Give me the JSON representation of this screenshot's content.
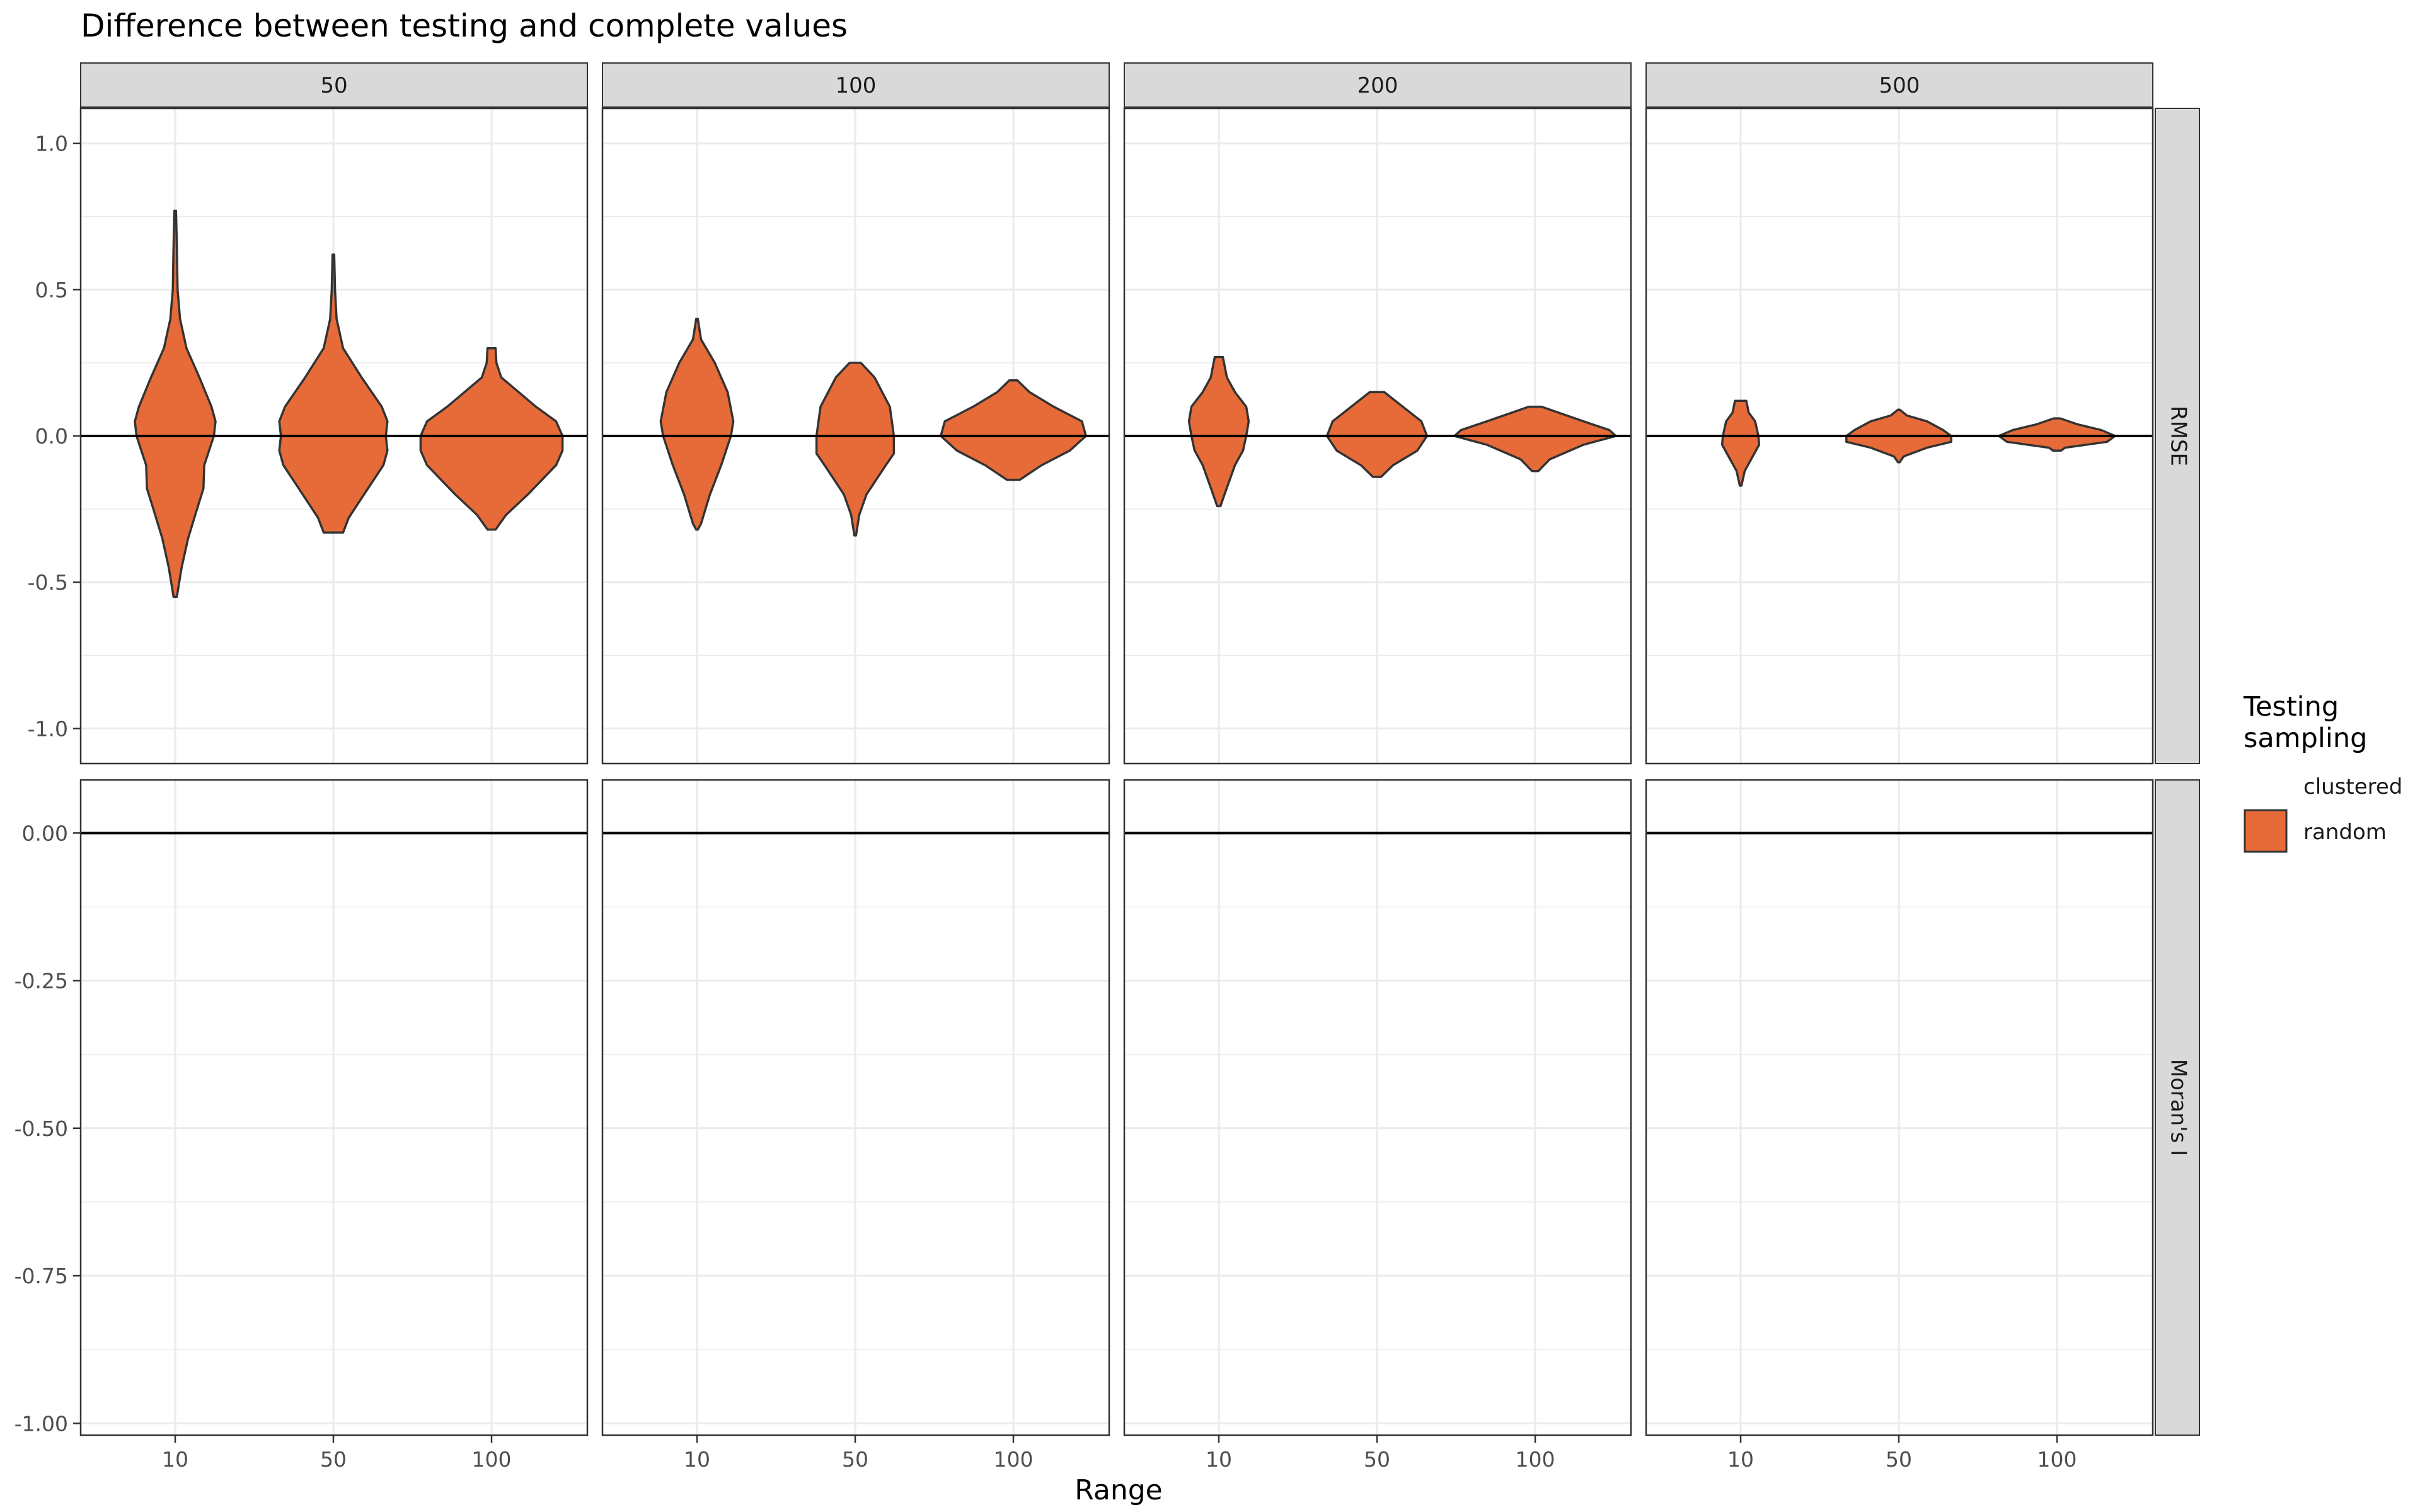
{
  "chart_data": {
    "type": "violin",
    "title": "Difference between testing and complete values",
    "xlabel": "Range",
    "ylabel": "",
    "col_facets": [
      "50",
      "100",
      "200",
      "500"
    ],
    "row_facets": [
      "RMSE",
      "Moran's I"
    ],
    "x_categories": [
      "10",
      "50",
      "100"
    ],
    "y_axes": {
      "RMSE": {
        "ylim": [
          -1.12,
          1.12
        ],
        "ticks": [
          1.0,
          0.5,
          0.0,
          -0.5,
          -1.0
        ],
        "tick_labels": [
          "1.0",
          "0.5",
          "0.0",
          "-0.5",
          "-1.0"
        ]
      },
      "Moran's I": {
        "ylim": [
          -1.02,
          0.09
        ],
        "ticks": [
          0.0,
          -0.25,
          -0.5,
          -0.75,
          -1.0
        ],
        "tick_labels": [
          "0.00",
          "-0.25",
          "-0.50",
          "-0.75",
          "-1.00"
        ]
      }
    },
    "reference_line": 0,
    "legend": {
      "title": "Testing\nsampling",
      "position": "right",
      "items": [
        {
          "label": "clustered",
          "color": "#ffffff",
          "show_key": false
        },
        {
          "label": "random",
          "color": "#E66B38",
          "show_key": true
        }
      ]
    },
    "colors": {
      "violin_fill": "#E66B38",
      "violin_stroke": "#333333",
      "strip_fill": "#D9D9D9",
      "grid": "#EBEBEB"
    },
    "violins": [
      {
        "facet": "50",
        "range": "10",
        "profile": [
          [
            0.77,
            0.01
          ],
          [
            0.65,
            0.02
          ],
          [
            0.5,
            0.03
          ],
          [
            0.4,
            0.06
          ],
          [
            0.3,
            0.14
          ],
          [
            0.2,
            0.3
          ],
          [
            0.1,
            0.45
          ],
          [
            0.05,
            0.5
          ],
          [
            0.0,
            0.48
          ],
          [
            -0.1,
            0.36
          ],
          [
            -0.18,
            0.35
          ],
          [
            -0.25,
            0.27
          ],
          [
            -0.35,
            0.16
          ],
          [
            -0.45,
            0.08
          ],
          [
            -0.55,
            0.02
          ]
        ]
      },
      {
        "facet": "50",
        "range": "50",
        "profile": [
          [
            0.62,
            0.01
          ],
          [
            0.5,
            0.02
          ],
          [
            0.4,
            0.04
          ],
          [
            0.3,
            0.12
          ],
          [
            0.2,
            0.35
          ],
          [
            0.1,
            0.6
          ],
          [
            0.05,
            0.67
          ],
          [
            0.0,
            0.65
          ],
          [
            -0.05,
            0.67
          ],
          [
            -0.1,
            0.62
          ],
          [
            -0.2,
            0.38
          ],
          [
            -0.28,
            0.19
          ],
          [
            -0.33,
            0.12
          ]
        ]
      },
      {
        "facet": "50",
        "range": "100",
        "profile": [
          [
            0.3,
            0.05
          ],
          [
            0.25,
            0.06
          ],
          [
            0.2,
            0.12
          ],
          [
            0.1,
            0.55
          ],
          [
            0.05,
            0.8
          ],
          [
            0.0,
            0.88
          ],
          [
            -0.05,
            0.88
          ],
          [
            -0.1,
            0.8
          ],
          [
            -0.2,
            0.45
          ],
          [
            -0.27,
            0.18
          ],
          [
            -0.32,
            0.05
          ]
        ]
      },
      {
        "facet": "100",
        "range": "10",
        "profile": [
          [
            0.4,
            0.01
          ],
          [
            0.33,
            0.05
          ],
          [
            0.25,
            0.22
          ],
          [
            0.15,
            0.38
          ],
          [
            0.05,
            0.45
          ],
          [
            0.0,
            0.42
          ],
          [
            -0.1,
            0.3
          ],
          [
            -0.2,
            0.16
          ],
          [
            -0.3,
            0.05
          ],
          [
            -0.32,
            0.01
          ]
        ]
      },
      {
        "facet": "100",
        "range": "50",
        "profile": [
          [
            0.25,
            0.07
          ],
          [
            0.2,
            0.24
          ],
          [
            0.1,
            0.43
          ],
          [
            0.0,
            0.48
          ],
          [
            -0.06,
            0.48
          ],
          [
            -0.1,
            0.38
          ],
          [
            -0.2,
            0.14
          ],
          [
            -0.27,
            0.05
          ],
          [
            -0.34,
            0.01
          ]
        ]
      },
      {
        "facet": "100",
        "range": "100",
        "profile": [
          [
            0.19,
            0.05
          ],
          [
            0.15,
            0.2
          ],
          [
            0.1,
            0.5
          ],
          [
            0.05,
            0.85
          ],
          [
            0.0,
            0.9
          ],
          [
            -0.05,
            0.7
          ],
          [
            -0.1,
            0.35
          ],
          [
            -0.15,
            0.08
          ]
        ]
      },
      {
        "facet": "200",
        "range": "10",
        "profile": [
          [
            0.27,
            0.05
          ],
          [
            0.2,
            0.1
          ],
          [
            0.15,
            0.2
          ],
          [
            0.1,
            0.34
          ],
          [
            0.05,
            0.37
          ],
          [
            0.0,
            0.34
          ],
          [
            -0.05,
            0.3
          ],
          [
            -0.1,
            0.2
          ],
          [
            -0.2,
            0.07
          ],
          [
            -0.24,
            0.02
          ]
        ]
      },
      {
        "facet": "200",
        "range": "50",
        "profile": [
          [
            0.15,
            0.09
          ],
          [
            0.1,
            0.32
          ],
          [
            0.05,
            0.55
          ],
          [
            0.0,
            0.62
          ],
          [
            -0.05,
            0.5
          ],
          [
            -0.1,
            0.2
          ],
          [
            -0.14,
            0.05
          ]
        ]
      },
      {
        "facet": "200",
        "range": "100",
        "profile": [
          [
            0.1,
            0.08
          ],
          [
            0.05,
            0.6
          ],
          [
            0.02,
            0.92
          ],
          [
            0.0,
            1.0
          ],
          [
            -0.03,
            0.6
          ],
          [
            -0.08,
            0.18
          ],
          [
            -0.12,
            0.04
          ]
        ]
      },
      {
        "facet": "500",
        "range": "10",
        "profile": [
          [
            0.12,
            0.07
          ],
          [
            0.08,
            0.1
          ],
          [
            0.05,
            0.18
          ],
          [
            0.0,
            0.22
          ],
          [
            -0.03,
            0.23
          ],
          [
            -0.07,
            0.15
          ],
          [
            -0.12,
            0.05
          ],
          [
            -0.17,
            0.01
          ]
        ]
      },
      {
        "facet": "500",
        "range": "50",
        "profile": [
          [
            0.09,
            0.01
          ],
          [
            0.07,
            0.1
          ],
          [
            0.05,
            0.35
          ],
          [
            0.02,
            0.55
          ],
          [
            0.0,
            0.65
          ],
          [
            -0.02,
            0.65
          ],
          [
            -0.04,
            0.35
          ],
          [
            -0.07,
            0.06
          ],
          [
            -0.09,
            0.01
          ]
        ]
      },
      {
        "facet": "500",
        "range": "100",
        "profile": [
          [
            0.06,
            0.04
          ],
          [
            0.04,
            0.25
          ],
          [
            0.02,
            0.55
          ],
          [
            0.0,
            0.72
          ],
          [
            -0.02,
            0.62
          ],
          [
            -0.04,
            0.1
          ],
          [
            -0.05,
            0.05
          ]
        ]
      }
    ]
  }
}
